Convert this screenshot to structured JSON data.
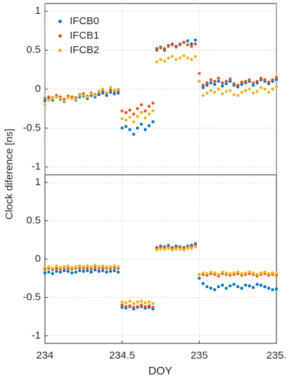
{
  "chart_data": [
    {
      "type": "scatter",
      "ylabel": "Clock diference [ns]",
      "legend": "upper left",
      "grid": true,
      "xlim": [
        234,
        235.5
      ],
      "ylim": [
        -1.1,
        1.1
      ],
      "yticks": [
        -1,
        -0.5,
        0,
        0.5,
        1
      ],
      "x": [
        234,
        234.025,
        234.05,
        234.075,
        234.1,
        234.125,
        234.15,
        234.175,
        234.2,
        234.225,
        234.25,
        234.275,
        234.3,
        234.325,
        234.35,
        234.375,
        234.4,
        234.425,
        234.45,
        234.475,
        234.5,
        234.525,
        234.55,
        234.575,
        234.6,
        234.625,
        234.65,
        234.675,
        234.7,
        234.725,
        234.75,
        234.775,
        234.8,
        234.825,
        234.85,
        234.875,
        234.9,
        234.925,
        234.95,
        234.975,
        235,
        235.025,
        235.05,
        235.075,
        235.1,
        235.125,
        235.15,
        235.175,
        235.2,
        235.225,
        235.25,
        235.275,
        235.3,
        235.325,
        235.35,
        235.375,
        235.4,
        235.425,
        235.45,
        235.475,
        235.5
      ],
      "series": [
        {
          "name": "IFCB0",
          "color": "#0072bd",
          "values": [
            -0.15,
            -0.12,
            -0.14,
            -0.1,
            -0.13,
            -0.16,
            -0.11,
            -0.12,
            -0.14,
            -0.1,
            -0.09,
            -0.12,
            -0.08,
            -0.1,
            -0.07,
            -0.05,
            -0.08,
            -0.04,
            -0.06,
            -0.05,
            -0.5,
            -0.48,
            -0.52,
            -0.58,
            -0.5,
            -0.45,
            -0.52,
            -0.47,
            -0.42,
            0.52,
            0.54,
            0.5,
            0.56,
            0.58,
            0.55,
            0.57,
            0.6,
            0.62,
            0.58,
            0.63,
            0.1,
            0.02,
            0.05,
            0.08,
            0.06,
            0.1,
            0.04,
            0.07,
            0.1,
            0.05,
            0.03,
            0.06,
            0.08,
            0.1,
            0.05,
            0.08,
            0.12,
            0.1,
            0.07,
            0.1,
            0.12
          ]
        },
        {
          "name": "IFCB1",
          "color": "#d95319",
          "values": [
            -0.12,
            -0.1,
            -0.11,
            -0.08,
            -0.1,
            -0.13,
            -0.09,
            -0.1,
            -0.11,
            -0.07,
            -0.06,
            -0.09,
            -0.05,
            -0.07,
            -0.04,
            -0.02,
            -0.05,
            -0.01,
            -0.03,
            -0.02,
            -0.28,
            -0.3,
            -0.27,
            -0.32,
            -0.25,
            -0.2,
            -0.28,
            -0.22,
            -0.18,
            0.5,
            0.53,
            0.52,
            0.55,
            0.57,
            0.54,
            0.58,
            0.6,
            0.57,
            0.55,
            0.58,
            0.2,
            0.05,
            0.08,
            0.12,
            0.1,
            0.14,
            0.08,
            0.1,
            0.13,
            0.07,
            0.05,
            0.09,
            0.1,
            0.12,
            0.08,
            0.1,
            0.14,
            0.12,
            0.09,
            0.12,
            0.15
          ]
        },
        {
          "name": "IFCB2",
          "color": "#edb120",
          "values": [
            -0.2,
            -0.14,
            -0.12,
            -0.1,
            -0.12,
            -0.15,
            -0.11,
            -0.12,
            -0.13,
            -0.08,
            -0.08,
            -0.1,
            -0.06,
            -0.08,
            -0.03,
            0,
            -0.04,
            0.02,
            -0.01,
            0,
            -0.38,
            -0.4,
            -0.36,
            -0.42,
            -0.35,
            -0.3,
            -0.37,
            -0.32,
            -0.28,
            0.35,
            0.38,
            0.36,
            0.4,
            0.42,
            0.38,
            0.4,
            0.43,
            0.4,
            0.38,
            0.42,
            0.1,
            -0.08,
            -0.05,
            -0.02,
            -0.04,
            0,
            -0.06,
            -0.03,
            -0.02,
            -0.07,
            -0.08,
            -0.04,
            -0.02,
            0,
            -0.05,
            -0.03,
            0.02,
            0,
            -0.04,
            0,
            0.03
          ]
        }
      ]
    },
    {
      "type": "scatter",
      "xlabel": "DOY",
      "grid": true,
      "xlim": [
        234,
        235.5
      ],
      "ylim": [
        -1.1,
        1.1
      ],
      "yticks": [
        -1,
        -0.5,
        0,
        0.5,
        1
      ],
      "xticks": [
        234,
        234.5,
        235,
        {
          "value": 235.5,
          "label": "235."
        }
      ],
      "x": [
        234,
        234.025,
        234.05,
        234.075,
        234.1,
        234.125,
        234.15,
        234.175,
        234.2,
        234.225,
        234.25,
        234.275,
        234.3,
        234.325,
        234.35,
        234.375,
        234.4,
        234.425,
        234.45,
        234.475,
        234.5,
        234.525,
        234.55,
        234.575,
        234.6,
        234.625,
        234.65,
        234.675,
        234.7,
        234.725,
        234.75,
        234.775,
        234.8,
        234.825,
        234.85,
        234.875,
        234.9,
        234.925,
        234.95,
        234.975,
        235,
        235.025,
        235.05,
        235.075,
        235.1,
        235.125,
        235.15,
        235.175,
        235.2,
        235.225,
        235.25,
        235.275,
        235.3,
        235.325,
        235.35,
        235.375,
        235.4,
        235.425,
        235.45,
        235.475,
        235.5
      ],
      "series": [
        {
          "color": "#0072bd",
          "values": [
            -0.18,
            -0.17,
            -0.19,
            -0.16,
            -0.17,
            -0.15,
            -0.16,
            -0.18,
            -0.17,
            -0.15,
            -0.16,
            -0.15,
            -0.17,
            -0.14,
            -0.16,
            -0.15,
            -0.17,
            -0.16,
            -0.15,
            -0.17,
            -0.63,
            -0.64,
            -0.62,
            -0.65,
            -0.63,
            -0.62,
            -0.64,
            -0.63,
            -0.65,
            0.15,
            0.17,
            0.16,
            0.18,
            0.15,
            0.17,
            0.16,
            0.15,
            0.17,
            0.18,
            0.2,
            -0.25,
            -0.32,
            -0.36,
            -0.38,
            -0.4,
            -0.36,
            -0.34,
            -0.38,
            -0.35,
            -0.33,
            -0.36,
            -0.38,
            -0.34,
            -0.35,
            -0.37,
            -0.33,
            -0.34,
            -0.36,
            -0.38,
            -0.4,
            -0.39
          ]
        },
        {
          "color": "#d95319",
          "values": [
            -0.13,
            -0.12,
            -0.14,
            -0.12,
            -0.13,
            -0.11,
            -0.12,
            -0.13,
            -0.12,
            -0.11,
            -0.12,
            -0.11,
            -0.13,
            -0.1,
            -0.12,
            -0.11,
            -0.12,
            -0.12,
            -0.11,
            -0.12,
            -0.6,
            -0.62,
            -0.61,
            -0.63,
            -0.62,
            -0.6,
            -0.62,
            -0.61,
            -0.63,
            0.14,
            0.15,
            0.15,
            0.16,
            0.14,
            0.15,
            0.15,
            0.14,
            0.16,
            0.16,
            0.18,
            -0.2,
            -0.2,
            -0.21,
            -0.19,
            -0.2,
            -0.22,
            -0.19,
            -0.2,
            -0.21,
            -0.2,
            -0.19,
            -0.21,
            -0.2,
            -0.19,
            -0.2,
            -0.22,
            -0.2,
            -0.19,
            -0.21,
            -0.2,
            -0.21
          ]
        },
        {
          "color": "#edb120",
          "values": [
            -0.11,
            -0.1,
            -0.12,
            -0.09,
            -0.11,
            -0.1,
            -0.09,
            -0.11,
            -0.1,
            -0.09,
            -0.1,
            -0.09,
            -0.1,
            -0.08,
            -0.1,
            -0.09,
            -0.1,
            -0.1,
            -0.09,
            -0.1,
            -0.56,
            -0.57,
            -0.55,
            -0.58,
            -0.56,
            -0.55,
            -0.57,
            -0.56,
            -0.58,
            0.12,
            0.13,
            0.13,
            0.14,
            0.12,
            0.13,
            0.13,
            0.12,
            0.14,
            0.14,
            0.16,
            -0.2,
            -0.18,
            -0.19,
            -0.17,
            -0.18,
            -0.2,
            -0.17,
            -0.18,
            -0.19,
            -0.18,
            -0.17,
            -0.19,
            -0.18,
            -0.17,
            -0.18,
            -0.2,
            -0.18,
            -0.17,
            -0.19,
            -0.18,
            -0.19
          ]
        }
      ]
    }
  ]
}
